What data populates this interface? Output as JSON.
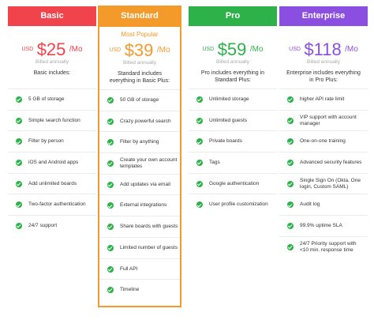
{
  "colors": {
    "basic": "#f1434b",
    "standard": "#f39a2b",
    "pro": "#2db24a",
    "enterprise": "#8a4fe0",
    "check": "#2db24a"
  },
  "plans": [
    {
      "name": "Basic",
      "popular": "",
      "currency": "USD",
      "price": "$25",
      "period": "/Mo",
      "billed": "Billed annually",
      "includes": "Basic includes:",
      "features": [
        "5 GB of storage",
        "Simple search function",
        "Filter by person",
        "iOS and Android apps",
        "Add unlimited boards",
        "Two-factor authentication",
        "24/7 support"
      ]
    },
    {
      "name": "Standard",
      "popular": "Most Popular",
      "currency": "USD",
      "price": "$39",
      "period": "/Mo",
      "billed": "Billed annually",
      "includes": "Standard includes everything in Basic Plus:",
      "features": [
        "50 GB of storage",
        "Crazy powerful search",
        "Filter by anything",
        "Create your own account templates",
        "Add updates via email",
        "External integrations",
        "Share boards with guests",
        "Limited number of guests",
        "Full API",
        "Timeline"
      ]
    },
    {
      "name": "Pro",
      "popular": "",
      "currency": "USD",
      "price": "$59",
      "period": "/Mo",
      "billed": "Billed annually",
      "includes": "Pro includes everything in Standard Plus:",
      "features": [
        "Unlimited storage",
        "Unlimited guests",
        "Private boards",
        "Tags",
        "Google authentication",
        "User profile customization"
      ]
    },
    {
      "name": "Enterprise",
      "popular": "",
      "currency": "USD",
      "price": "$118",
      "period": "/Mo",
      "billed": "Billed annually",
      "includes": "Enterprise includes everything in Pro Plus:",
      "features": [
        "higher API rate limit",
        "VIP support with account manager",
        "One-on-one training",
        "Advanced security features",
        "Single Sign On (Okta, One login, Custom SAML)",
        "Audit log",
        "99.9% uptime SLA",
        "24/7 Priority support with <10 min. response time"
      ]
    }
  ]
}
